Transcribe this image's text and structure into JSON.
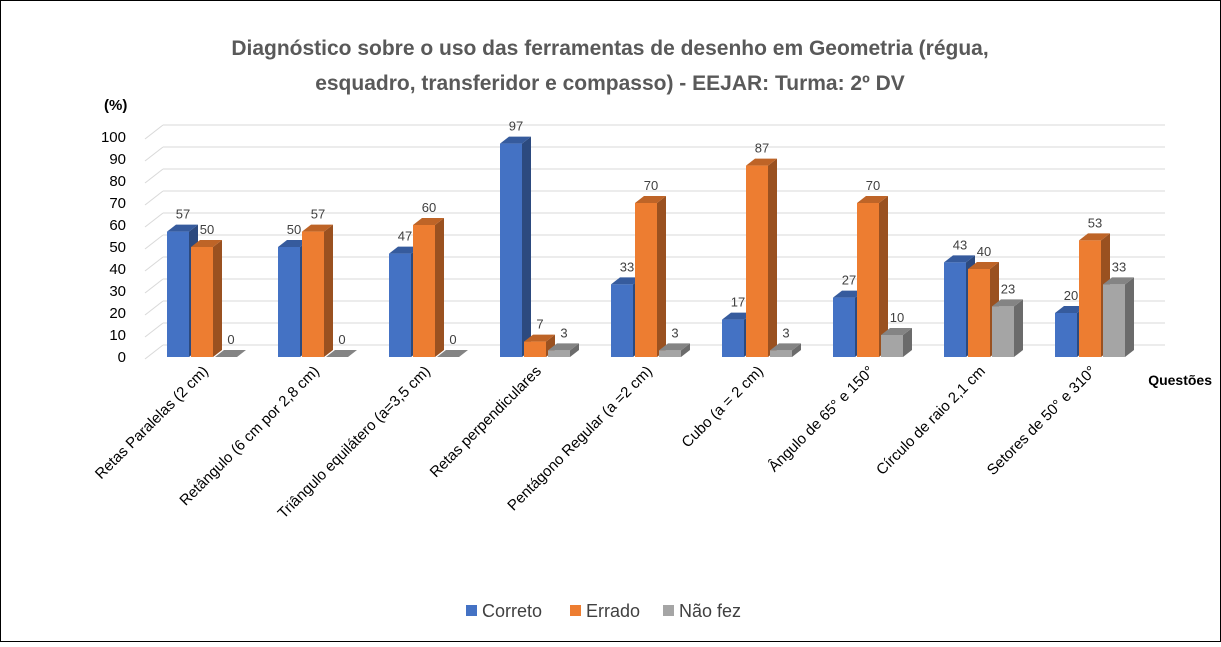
{
  "chart_data": {
    "type": "bar3d",
    "title": [
      "Diagnóstico sobre o uso das ferramentas de desenho em Geometria (régua,",
      "esquadro, transferidor e compasso) - EEJAR: Turma: 2º DV"
    ],
    "y_label": "(%)",
    "x_label": "Questões",
    "categories": [
      "Retas Paralelas (2 cm)",
      "Retângulo (6 cm por 2,8 cm)",
      "Triângulo equilátero (a=3,5 cm)",
      "Retas perpendiculares",
      "Pentágono Regular (a =2 cm)",
      "Cubo (a = 2 cm)",
      "Ângulo de 65°  e 150°",
      "Círculo de raio 2,1 cm",
      "Setores de 50° e 310°"
    ],
    "series": [
      {
        "name": "Correto",
        "color": "#4472c4",
        "values": [
          57,
          50,
          47,
          97,
          33,
          17,
          27,
          43,
          20
        ]
      },
      {
        "name": "Errado",
        "color": "#ed7d31",
        "values": [
          50,
          57,
          60,
          7,
          70,
          87,
          70,
          40,
          53
        ]
      },
      {
        "name": "Não fez",
        "color": "#a5a5a5",
        "values": [
          0,
          0,
          0,
          3,
          3,
          3,
          10,
          23,
          33
        ]
      }
    ],
    "ylim": [
      0,
      100
    ],
    "yticks": [
      0,
      10,
      20,
      30,
      40,
      50,
      60,
      70,
      80,
      90,
      100
    ],
    "grid": true,
    "legend": "bottom"
  }
}
